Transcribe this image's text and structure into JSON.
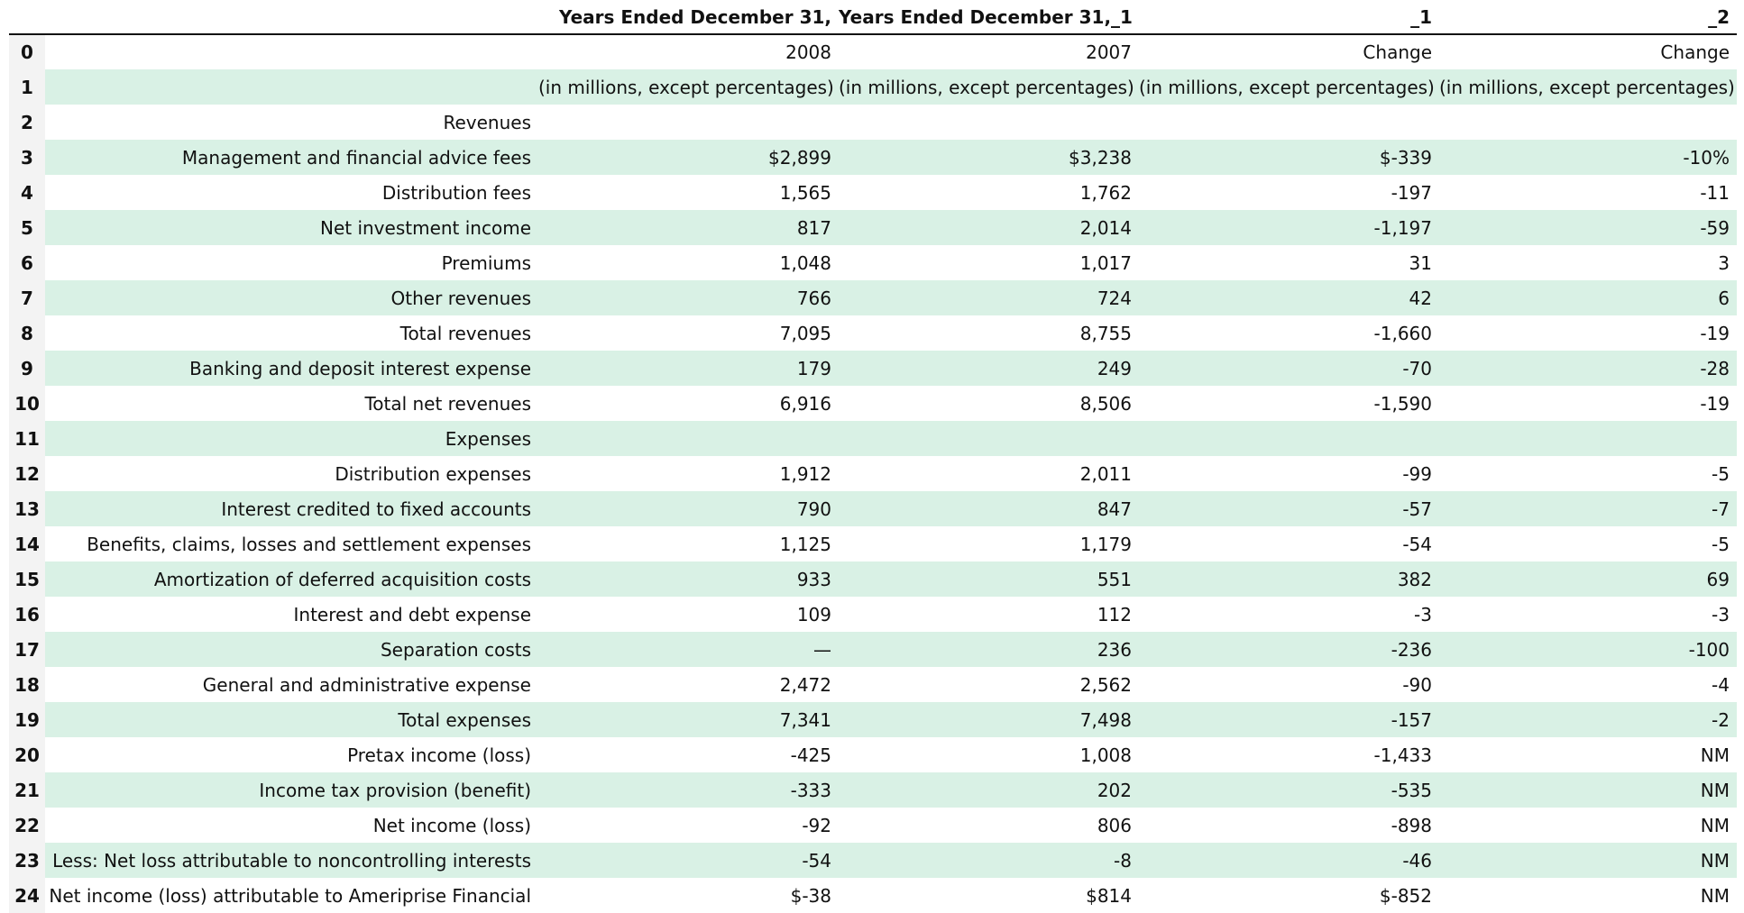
{
  "table": {
    "headers": [
      "",
      "",
      "Years Ended December 31,",
      "Years Ended December 31,_1",
      "_1",
      "_2"
    ],
    "rows": [
      {
        "index": "0",
        "label": "",
        "v1": "2008",
        "v2": "2007",
        "v3": "Change",
        "v4": "Change"
      },
      {
        "index": "1",
        "label": "",
        "v1": "(in millions, except percentages)",
        "v2": "(in millions, except percentages)",
        "v3": "(in millions, except percentages)",
        "v4": "(in millions, except percentages)"
      },
      {
        "index": "2",
        "label": "Revenues",
        "v1": "",
        "v2": "",
        "v3": "",
        "v4": ""
      },
      {
        "index": "3",
        "label": "Management and financial advice fees",
        "v1": "$2,899",
        "v2": "$3,238",
        "v3": "$-339",
        "v4": "-10%"
      },
      {
        "index": "4",
        "label": "Distribution fees",
        "v1": "1,565",
        "v2": "1,762",
        "v3": "-197",
        "v4": "-11"
      },
      {
        "index": "5",
        "label": "Net investment income",
        "v1": "817",
        "v2": "2,014",
        "v3": "-1,197",
        "v4": "-59"
      },
      {
        "index": "6",
        "label": "Premiums",
        "v1": "1,048",
        "v2": "1,017",
        "v3": "31",
        "v4": "3"
      },
      {
        "index": "7",
        "label": "Other revenues",
        "v1": "766",
        "v2": "724",
        "v3": "42",
        "v4": "6"
      },
      {
        "index": "8",
        "label": "Total revenues",
        "v1": "7,095",
        "v2": "8,755",
        "v3": "-1,660",
        "v4": "-19"
      },
      {
        "index": "9",
        "label": "Banking and deposit interest expense",
        "v1": "179",
        "v2": "249",
        "v3": "-70",
        "v4": "-28"
      },
      {
        "index": "10",
        "label": "Total net revenues",
        "v1": "6,916",
        "v2": "8,506",
        "v3": "-1,590",
        "v4": "-19"
      },
      {
        "index": "11",
        "label": "Expenses",
        "v1": "",
        "v2": "",
        "v3": "",
        "v4": ""
      },
      {
        "index": "12",
        "label": "Distribution expenses",
        "v1": "1,912",
        "v2": "2,011",
        "v3": "-99",
        "v4": "-5"
      },
      {
        "index": "13",
        "label": "Interest credited to fixed accounts",
        "v1": "790",
        "v2": "847",
        "v3": "-57",
        "v4": "-7"
      },
      {
        "index": "14",
        "label": "Benefits, claims, losses and settlement expenses",
        "v1": "1,125",
        "v2": "1,179",
        "v3": "-54",
        "v4": "-5"
      },
      {
        "index": "15",
        "label": "Amortization of deferred acquisition costs",
        "v1": "933",
        "v2": "551",
        "v3": "382",
        "v4": "69"
      },
      {
        "index": "16",
        "label": "Interest and debt expense",
        "v1": "109",
        "v2": "112",
        "v3": "-3",
        "v4": "-3"
      },
      {
        "index": "17",
        "label": "Separation costs",
        "v1": "—",
        "v2": "236",
        "v3": "-236",
        "v4": "-100"
      },
      {
        "index": "18",
        "label": "General and administrative expense",
        "v1": "2,472",
        "v2": "2,562",
        "v3": "-90",
        "v4": "-4"
      },
      {
        "index": "19",
        "label": "Total expenses",
        "v1": "7,341",
        "v2": "7,498",
        "v3": "-157",
        "v4": "-2"
      },
      {
        "index": "20",
        "label": "Pretax income (loss)",
        "v1": "-425",
        "v2": "1,008",
        "v3": "-1,433",
        "v4": "NM"
      },
      {
        "index": "21",
        "label": "Income tax provision (benefit)",
        "v1": "-333",
        "v2": "202",
        "v3": "-535",
        "v4": "NM"
      },
      {
        "index": "22",
        "label": "Net income (loss)",
        "v1": "-92",
        "v2": "806",
        "v3": "-898",
        "v4": "NM"
      },
      {
        "index": "23",
        "label": "Less: Net loss attributable to noncontrolling interests",
        "v1": "-54",
        "v2": "-8",
        "v3": "-46",
        "v4": "NM"
      },
      {
        "index": "24",
        "label": "Net income (loss) attributable to Ameriprise Financial",
        "v1": "$-38",
        "v2": "$814",
        "v3": "$-852",
        "v4": "NM"
      }
    ]
  },
  "colors": {
    "stripe": "#d9f1e5",
    "index_bg": "#f3f3f3",
    "rule": "#111111"
  }
}
